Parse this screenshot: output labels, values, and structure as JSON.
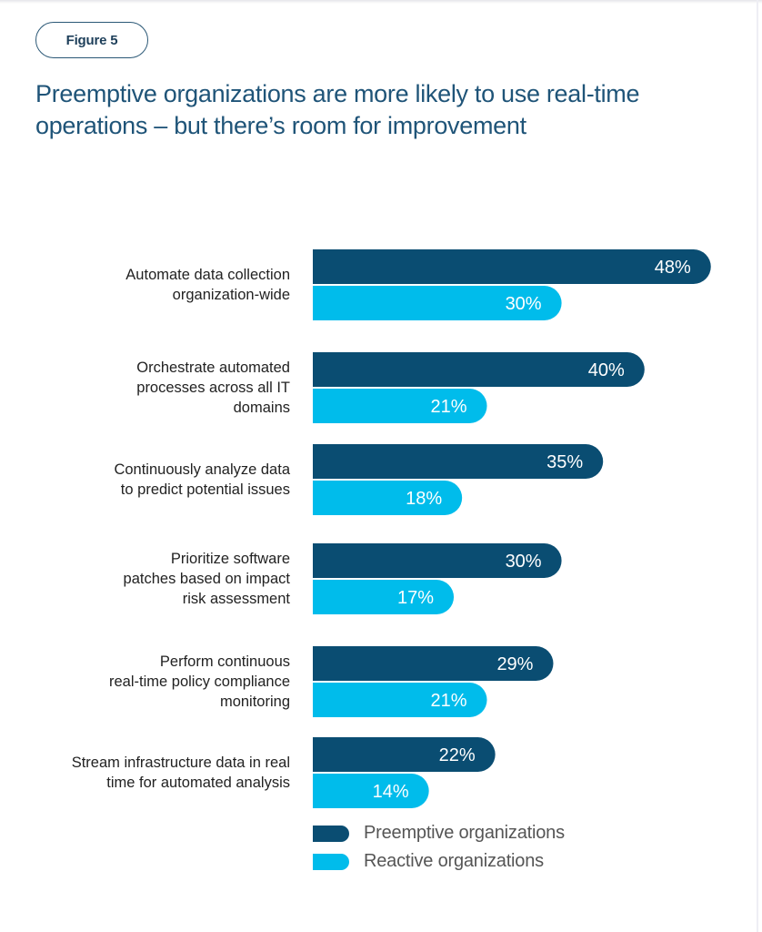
{
  "figure_label": "Figure 5",
  "title": "Preemptive organizations are more likely to use real-time operations – but there’s room for improvement",
  "colors": {
    "preemptive": "#0a4d72",
    "reactive": "#00bceb",
    "title": "#1f5478"
  },
  "chart_data": {
    "type": "bar",
    "orientation": "horizontal",
    "title": "Preemptive organizations are more likely to use real-time operations – but there’s room for improvement",
    "xlabel": "",
    "ylabel": "",
    "unit": "%",
    "grid": false,
    "legend_position": "bottom",
    "categories": [
      "Automate data collection organization-wide",
      "Orchestrate automated processes across all IT domains",
      "Continuously analyze data to predict potential issues",
      "Prioritize software patches based on impact risk assessment",
      "Perform continuous real-time policy compliance monitoring",
      "Stream infrastructure data in real time for automated analysis"
    ],
    "category_lines": [
      [
        "Automate data collection",
        "organization-wide"
      ],
      [
        "Orchestrate automated",
        "processes across all IT",
        "domains"
      ],
      [
        "Continuously analyze data",
        "to predict potential issues"
      ],
      [
        "Prioritize software",
        "patches based on impact",
        "risk assessment"
      ],
      [
        "Perform continuous",
        "real-time policy compliance",
        "monitoring"
      ],
      [
        "Stream infrastructure data in real",
        "time for automated analysis"
      ]
    ],
    "series": [
      {
        "name": "Preemptive organizations",
        "values": [
          48,
          40,
          35,
          30,
          29,
          22
        ],
        "labels": [
          "48%",
          "40%",
          "35%",
          "30%",
          "29%",
          "22%"
        ]
      },
      {
        "name": "Reactive organizations",
        "values": [
          30,
          21,
          18,
          17,
          21,
          14
        ],
        "labels": [
          "30%",
          "21%",
          "18%",
          "17%",
          "21%",
          "14%"
        ]
      }
    ],
    "xlim": [
      0,
      48
    ]
  }
}
